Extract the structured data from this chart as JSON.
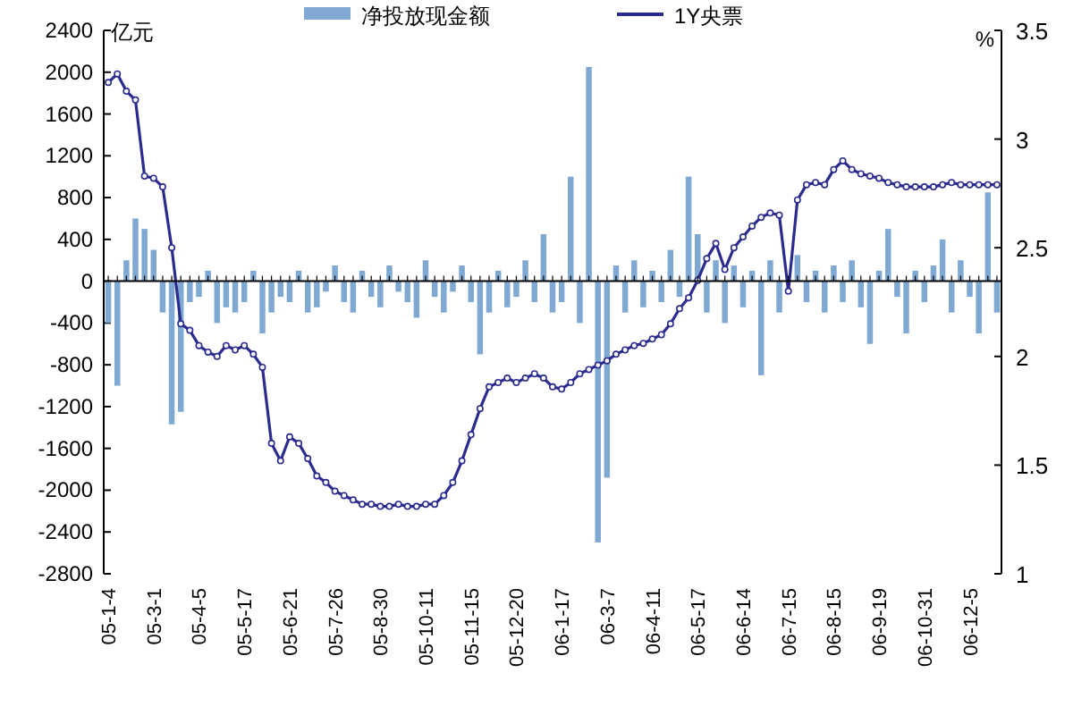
{
  "chart_data": {
    "type": "bar",
    "ylabel": "亿元",
    "y2label": "%",
    "categories": [
      "05-1-4",
      null,
      null,
      null,
      null,
      "05-3-1",
      null,
      null,
      null,
      null,
      "05-4-5",
      null,
      null,
      null,
      null,
      "05-5-17",
      null,
      null,
      null,
      null,
      "05-6-21",
      null,
      null,
      null,
      null,
      "05-7-26",
      null,
      null,
      null,
      null,
      "05-8-30",
      null,
      null,
      null,
      null,
      "05-10-11",
      null,
      null,
      null,
      null,
      "05-11-15",
      null,
      null,
      null,
      null,
      "05-12-20",
      null,
      null,
      null,
      null,
      "06-1-17",
      null,
      null,
      null,
      null,
      "06-3-7",
      null,
      null,
      null,
      null,
      "06-4-11",
      null,
      null,
      null,
      null,
      "06-5-17",
      null,
      null,
      null,
      null,
      "06-6-14",
      null,
      null,
      null,
      null,
      "06-7-15",
      null,
      null,
      null,
      null,
      "06-8-15",
      null,
      null,
      null,
      null,
      "06-9-19",
      null,
      null,
      null,
      null,
      "06-10-31",
      null,
      null,
      null,
      null,
      "06-12-5",
      null,
      null,
      null
    ],
    "series": [
      {
        "name": "净投放现金额",
        "color": "#7fa9d3",
        "values": [
          -400,
          -1000,
          200,
          600,
          500,
          300,
          -300,
          -1370,
          -1250,
          -200,
          -150,
          100,
          -400,
          -250,
          -300,
          -200,
          100,
          -500,
          -300,
          -150,
          -200,
          100,
          -300,
          -250,
          -100,
          150,
          -200,
          -300,
          100,
          -150,
          -250,
          150,
          -100,
          -200,
          -350,
          200,
          -150,
          -300,
          -100,
          150,
          -200,
          -700,
          -300,
          100,
          -250,
          -150,
          200,
          -200,
          450,
          -300,
          -200,
          1000,
          -400,
          2050,
          -2500,
          -1880,
          150,
          -300,
          200,
          -250,
          100,
          -200,
          300,
          -150,
          1000,
          450,
          -300,
          200,
          -400,
          150,
          -250,
          100,
          -900,
          200,
          -300,
          null,
          250,
          -200,
          100,
          -300,
          150,
          -200,
          200,
          -250,
          -600,
          100,
          500,
          -150,
          -500,
          100,
          -200,
          150,
          400,
          -300,
          200,
          -150,
          -500,
          850,
          -300
        ]
      },
      {
        "name": "1Y央票",
        "type": "line",
        "axis": "y2",
        "color": "#2b2b8f",
        "values": [
          3.26,
          3.3,
          3.22,
          3.18,
          2.83,
          2.82,
          2.78,
          2.5,
          2.15,
          2.12,
          2.05,
          2.02,
          2.0,
          2.05,
          2.03,
          2.05,
          2.01,
          1.95,
          1.6,
          1.52,
          1.63,
          1.6,
          1.53,
          1.45,
          1.42,
          1.38,
          1.36,
          1.34,
          1.32,
          1.32,
          1.31,
          1.31,
          1.32,
          1.31,
          1.31,
          1.32,
          1.32,
          1.36,
          1.42,
          1.52,
          1.64,
          1.76,
          1.86,
          1.88,
          1.9,
          1.88,
          1.9,
          1.92,
          1.9,
          1.86,
          1.85,
          1.88,
          1.92,
          1.94,
          1.96,
          1.98,
          2.01,
          2.03,
          2.05,
          2.06,
          2.08,
          2.1,
          2.15,
          2.22,
          2.27,
          2.35,
          2.45,
          2.52,
          2.4,
          2.5,
          2.55,
          2.6,
          2.64,
          2.66,
          2.65,
          2.3,
          2.72,
          2.79,
          2.8,
          2.79,
          2.86,
          2.9,
          2.86,
          2.84,
          2.83,
          2.82,
          2.8,
          2.79,
          2.78,
          2.78,
          2.78,
          2.78,
          2.79,
          2.8,
          2.79,
          2.79,
          2.79,
          2.79,
          2.79
        ]
      }
    ],
    "ylim": [
      -2800,
      2400
    ],
    "yticks": [
      -2800,
      -2400,
      -2000,
      -1600,
      -1200,
      -800,
      -400,
      0,
      400,
      800,
      1200,
      1600,
      2000,
      2400
    ],
    "y2lim": [
      1,
      3.5
    ],
    "y2ticks": [
      1,
      1.5,
      2,
      2.5,
      3,
      3.5
    ],
    "marker": "circle",
    "legend": "top"
  }
}
